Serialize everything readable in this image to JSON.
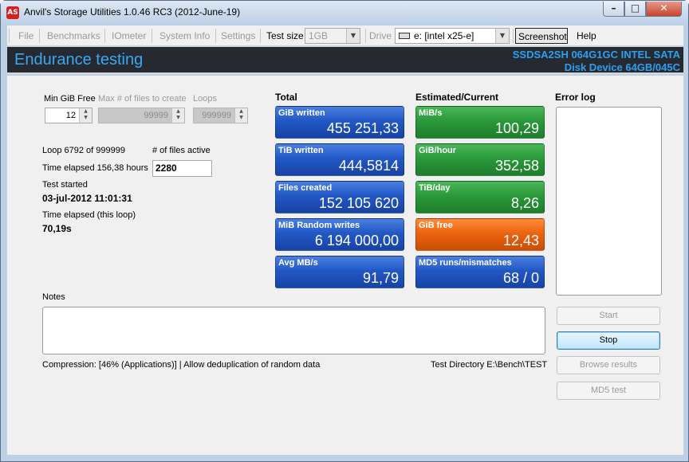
{
  "window": {
    "title": "Anvil's Storage Utilities 1.0.46 RC3 (2012-June-19)",
    "app_icon_text": "AS",
    "caption_buttons": {
      "minimize": "–",
      "maximize": "□",
      "close": "✕"
    }
  },
  "menu": {
    "file": "File",
    "benchmarks": "Benchmarks",
    "iometer": "IOmeter",
    "system_info": "System Info",
    "settings": "Settings",
    "test_size_label": "Test size",
    "test_size_value": "1GB",
    "drive_label": "Drive",
    "drive_value": "e: [intel x25-e]",
    "screenshot": "Screenshot",
    "help": "Help"
  },
  "banner": {
    "title": "Endurance testing",
    "disk_line1": "SSDSA2SH 064G1GC INTEL SATA",
    "disk_line2": "Disk Device 64GB/045C",
    "accent_color": "#3aa7f0"
  },
  "settings": {
    "min_gib_free_label": "Min GiB Free",
    "min_gib_free_value": "12",
    "max_files_label": "Max # of files to create",
    "max_files_value": "99999",
    "loops_label": "Loops",
    "loops_value": "999999"
  },
  "status": {
    "loop": "Loop 6792 of 999999",
    "files_active_label": "# of files active",
    "files_active_value": "2280",
    "time_elapsed": "Time elapsed 156,38 hours",
    "test_started_label": "Test started",
    "test_started_value": "03-jul-2012 11:01:31",
    "time_loop_label": "Time elapsed (this loop)",
    "time_loop_value": "70,19s"
  },
  "total": {
    "header": "Total",
    "tiles": [
      {
        "label": "GiB written",
        "value": "455 251,33",
        "color": "blue"
      },
      {
        "label": "TiB written",
        "value": "444,5814",
        "color": "blue"
      },
      {
        "label": "Files created",
        "value": "152 105 620",
        "color": "blue"
      },
      {
        "label": "MiB Random writes",
        "value": "6 194 000,00",
        "color": "blue"
      },
      {
        "label": "Avg MB/s",
        "value": "91,79",
        "color": "blue"
      }
    ]
  },
  "estimated": {
    "header": "Estimated/Current",
    "tiles": [
      {
        "label": "MiB/s",
        "value": "100,29",
        "color": "green"
      },
      {
        "label": "GiB/hour",
        "value": "352,58",
        "color": "green"
      },
      {
        "label": "TiB/day",
        "value": "8,26",
        "color": "green"
      },
      {
        "label": "GiB free",
        "value": "12,43",
        "color": "orange"
      },
      {
        "label": "MD5 runs/mismatches",
        "value": "68 / 0",
        "color": "blue"
      }
    ]
  },
  "error_log": {
    "header": "Error log"
  },
  "notes": {
    "label": "Notes",
    "value": ""
  },
  "buttons": {
    "start": "Start",
    "stop": "Stop",
    "browse": "Browse results",
    "md5": "MD5 test"
  },
  "footer": {
    "compression": "Compression: [46% (Applications)] | Allow deduplication of random data",
    "test_directory": "Test Directory E:\\Bench\\TEST"
  },
  "colors": {
    "tile_blue": "#2258c6",
    "tile_green": "#2a9a3a",
    "tile_orange": "#ec6410",
    "banner_bg": "#262a30"
  }
}
